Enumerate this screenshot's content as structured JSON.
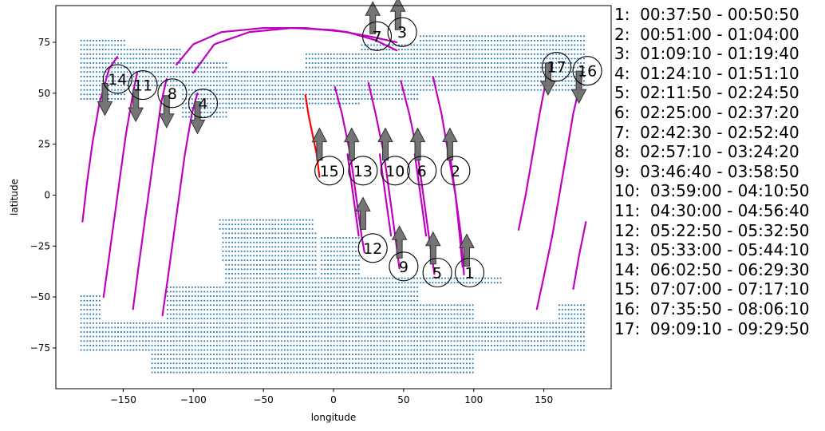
{
  "chart_data": {
    "type": "scatter",
    "title": "",
    "xlabel": "longitude",
    "ylabel": "latitude",
    "xlim": [
      -198,
      198
    ],
    "ylim": [
      -95,
      93
    ],
    "x_ticks": [
      -150,
      -100,
      -50,
      0,
      50,
      100,
      150
    ],
    "y_ticks": [
      -75,
      -50,
      -25,
      0,
      25,
      50,
      75
    ],
    "x_tick_labels": [
      "−150",
      "−100",
      "−50",
      "0",
      "50",
      "100",
      "150"
    ],
    "y_tick_labels": [
      "−75",
      "−50",
      "−25",
      "0",
      "25",
      "50",
      "75"
    ],
    "grid": false,
    "colors": {
      "land": "#1f77b4",
      "track": "#c000c0",
      "highlight": "#ff0000",
      "arrow": "#6e6e6e"
    },
    "land_regions": [
      {
        "name": "north-band",
        "lat": [
          36,
          78
        ],
        "lon": [
          [
            -180,
            180
          ]
        ]
      },
      {
        "name": "south-band",
        "lat": [
          -88,
          -12
        ],
        "lon": [
          [
            -180,
            180
          ]
        ]
      }
    ],
    "ground_tracks": [
      {
        "id": "1",
        "color": "magenta",
        "points": [
          [
            71,
            58
          ],
          [
            77,
            40
          ],
          [
            82,
            20
          ],
          [
            87,
            0
          ],
          [
            91,
            -20
          ],
          [
            93,
            -39
          ]
        ]
      },
      {
        "id": "2",
        "color": "magenta",
        "points": [
          [
            83,
            20
          ],
          [
            87,
            0
          ],
          [
            90,
            -20
          ],
          [
            92,
            -35
          ]
        ]
      },
      {
        "id": "5",
        "color": "magenta",
        "points": [
          [
            48,
            56
          ],
          [
            54,
            40
          ],
          [
            60,
            20
          ],
          [
            64,
            0
          ],
          [
            68,
            -20
          ],
          [
            72,
            -39
          ]
        ]
      },
      {
        "id": "6",
        "color": "magenta",
        "points": [
          [
            58,
            20
          ],
          [
            62,
            0
          ],
          [
            66,
            -20
          ]
        ]
      },
      {
        "id": "9",
        "color": "magenta",
        "points": [
          [
            25,
            55
          ],
          [
            30,
            40
          ],
          [
            36,
            20
          ],
          [
            40,
            0
          ],
          [
            44,
            -20
          ],
          [
            47,
            -36
          ]
        ]
      },
      {
        "id": "10",
        "color": "magenta",
        "points": [
          [
            33,
            20
          ],
          [
            37,
            0
          ],
          [
            41,
            -20
          ]
        ]
      },
      {
        "id": "12",
        "color": "magenta",
        "points": [
          [
            1,
            53
          ],
          [
            6,
            40
          ],
          [
            12,
            20
          ],
          [
            16,
            0
          ],
          [
            20,
            -20
          ],
          [
            22,
            -28
          ]
        ]
      },
      {
        "id": "13",
        "color": "magenta",
        "points": [
          [
            10,
            20
          ],
          [
            14,
            0
          ],
          [
            18,
            -20
          ]
        ]
      },
      {
        "id": "15",
        "color": "red",
        "points": [
          [
            -20,
            49
          ],
          [
            -18,
            40
          ],
          [
            -15,
            30
          ],
          [
            -12,
            20
          ],
          [
            -10,
            9
          ]
        ]
      },
      {
        "id": "14",
        "color": "magenta",
        "points": [
          [
            -179,
            -13
          ],
          [
            -176,
            5
          ],
          [
            -172,
            25
          ],
          [
            -167,
            45
          ],
          [
            -160,
            62
          ],
          [
            -154,
            68
          ]
        ]
      },
      {
        "id": "14b",
        "color": "magenta",
        "points": [
          [
            -164,
            -50
          ],
          [
            -160,
            -30
          ],
          [
            -156,
            -10
          ],
          [
            -152,
            10
          ],
          [
            -148,
            30
          ],
          [
            -143,
            50
          ],
          [
            -140,
            60
          ]
        ]
      },
      {
        "id": "11",
        "color": "magenta",
        "points": [
          [
            -143,
            -56
          ],
          [
            -139,
            -35
          ],
          [
            -135,
            -15
          ],
          [
            -131,
            5
          ],
          [
            -127,
            25
          ],
          [
            -123,
            45
          ],
          [
            -119,
            57
          ]
        ]
      },
      {
        "id": "8",
        "color": "magenta",
        "points": [
          [
            -122,
            -59
          ],
          [
            -118,
            -40
          ],
          [
            -114,
            -20
          ],
          [
            -110,
            0
          ],
          [
            -106,
            20
          ],
          [
            -101,
            40
          ],
          [
            -97,
            50
          ]
        ]
      },
      {
        "id": "4",
        "color": "magenta",
        "points": [
          [
            -112,
            64
          ],
          [
            -100,
            74
          ],
          [
            -80,
            80
          ],
          [
            -50,
            82
          ],
          [
            -20,
            82
          ],
          [
            10,
            80
          ],
          [
            30,
            76
          ],
          [
            45,
            71
          ]
        ]
      },
      {
        "id": "7",
        "color": "magenta",
        "points": [
          [
            -100,
            60
          ],
          [
            -85,
            74
          ],
          [
            -60,
            80
          ],
          [
            -30,
            82
          ],
          [
            0,
            81
          ],
          [
            25,
            78
          ],
          [
            45,
            75
          ]
        ]
      },
      {
        "id": "17",
        "color": "magenta",
        "points": [
          [
            132,
            -17
          ],
          [
            137,
            0
          ],
          [
            142,
            20
          ],
          [
            147,
            40
          ],
          [
            152,
            58
          ],
          [
            156,
            64
          ]
        ]
      },
      {
        "id": "17b",
        "color": "magenta",
        "points": [
          [
            145,
            -56
          ],
          [
            150,
            -40
          ],
          [
            156,
            -20
          ],
          [
            161,
            0
          ],
          [
            166,
            20
          ],
          [
            171,
            40
          ],
          [
            177,
            58
          ]
        ]
      },
      {
        "id": "16",
        "color": "magenta",
        "points": [
          [
            171,
            -46
          ],
          [
            175,
            -30
          ],
          [
            180,
            -13
          ]
        ]
      }
    ],
    "arrows": [
      {
        "lon": 95,
        "lat": -27,
        "dir": "up"
      },
      {
        "lon": 83,
        "lat": 25,
        "dir": "up"
      },
      {
        "lon": 71,
        "lat": -26,
        "dir": "up"
      },
      {
        "lon": 60,
        "lat": 25,
        "dir": "up"
      },
      {
        "lon": 47,
        "lat": -23,
        "dir": "up"
      },
      {
        "lon": 37,
        "lat": 25,
        "dir": "up"
      },
      {
        "lon": 21,
        "lat": -9,
        "dir": "up"
      },
      {
        "lon": 13,
        "lat": 25,
        "dir": "up"
      },
      {
        "lon": -10,
        "lat": 25,
        "dir": "up"
      },
      {
        "lon": 28,
        "lat": 87,
        "dir": "up"
      },
      {
        "lon": 46,
        "lat": 89,
        "dir": "up"
      },
      {
        "lon": -163,
        "lat": 47,
        "dir": "down"
      },
      {
        "lon": -141,
        "lat": 44,
        "dir": "down"
      },
      {
        "lon": -119,
        "lat": 41,
        "dir": "down"
      },
      {
        "lon": -97,
        "lat": 38,
        "dir": "down"
      },
      {
        "lon": 153,
        "lat": 57,
        "dir": "down"
      },
      {
        "lon": 175,
        "lat": 53,
        "dir": "down"
      }
    ],
    "segment_labels": [
      {
        "label": "1",
        "lon": 97,
        "lat": -38
      },
      {
        "label": "2",
        "lon": 87,
        "lat": 12
      },
      {
        "label": "3",
        "lon": 49,
        "lat": 80
      },
      {
        "label": "4",
        "lon": -93,
        "lat": 45
      },
      {
        "label": "5",
        "lon": 74,
        "lat": -38
      },
      {
        "label": "6",
        "lon": 63,
        "lat": 12
      },
      {
        "label": "7",
        "lon": 31,
        "lat": 78
      },
      {
        "label": "8",
        "lon": -115,
        "lat": 50
      },
      {
        "label": "9",
        "lon": 50,
        "lat": -35
      },
      {
        "label": "10",
        "lon": 44,
        "lat": 12
      },
      {
        "label": "11",
        "lon": -136,
        "lat": 54
      },
      {
        "label": "12",
        "lon": 28,
        "lat": -26
      },
      {
        "label": "13",
        "lon": 21,
        "lat": 12
      },
      {
        "label": "14",
        "lon": -154,
        "lat": 57
      },
      {
        "label": "15",
        "lon": -3,
        "lat": 12
      },
      {
        "label": "16",
        "lon": 181,
        "lat": 61
      },
      {
        "label": "17",
        "lon": 159,
        "lat": 63
      }
    ],
    "legend_entries": [
      "1:  00:37:50 - 00:50:50",
      "2:  00:51:00 - 01:04:00",
      "3:  01:09:10 - 01:19:40",
      "4:  01:24:10 - 01:51:10",
      "5:  02:11:50 - 02:24:50",
      "6:  02:25:00 - 02:37:20",
      "7:  02:42:30 - 02:52:40",
      "8:  02:57:10 - 03:24:20",
      "9:  03:46:40 - 03:58:50",
      "10:  03:59:00 - 04:10:50",
      "11:  04:30:00 - 04:56:40",
      "12:  05:22:50 - 05:32:50",
      "13:  05:33:00 - 05:44:10",
      "14:  06:02:50 - 06:29:30",
      "15:  07:07:00 - 07:17:10",
      "16:  07:35:50 - 08:06:10",
      "17:  09:09:10 - 09:29:50"
    ]
  }
}
